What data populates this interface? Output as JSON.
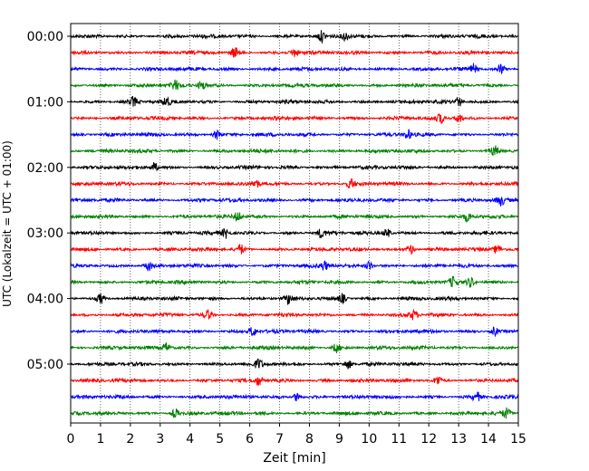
{
  "chart_data": {
    "type": "line",
    "title": "",
    "xlabel": "Zeit  [min]",
    "ylabel": "UTC (Lokalzeit = UTC + 01:00)",
    "xlim": [
      0,
      15
    ],
    "x_ticks": [
      "0",
      "1",
      "2",
      "3",
      "4",
      "5",
      "6",
      "7",
      "8",
      "9",
      "10",
      "11",
      "12",
      "13",
      "14",
      "15"
    ],
    "y_tick_labels": [
      "00:00",
      "01:00",
      "02:00",
      "03:00",
      "04:00",
      "05:00"
    ],
    "grid": "vertical dotted",
    "trace_interval_minutes": 15,
    "trace_count": 24,
    "trace_colors": [
      "#000000",
      "#ff0000",
      "#0000ff",
      "#008000"
    ],
    "trace_start_times": [
      "00:00",
      "00:15",
      "00:30",
      "00:45",
      "01:00",
      "01:15",
      "01:30",
      "01:45",
      "02:00",
      "02:15",
      "02:30",
      "02:45",
      "03:00",
      "03:15",
      "03:30",
      "03:45",
      "04:00",
      "04:15",
      "04:30",
      "04:45",
      "05:00",
      "05:15",
      "05:30",
      "05:45"
    ],
    "notable_events_min": [
      [
        8.4,
        9.2
      ],
      [
        5.5,
        7.5
      ],
      [
        13.5,
        14.4
      ],
      [
        3.5,
        4.4
      ],
      [
        2.1,
        3.2,
        13.0
      ],
      [
        12.4,
        13.0
      ],
      [
        4.9,
        11.3
      ],
      [
        14.2
      ],
      [
        2.8
      ],
      [
        6.2,
        9.4
      ],
      [
        14.4
      ],
      [
        5.6,
        13.3
      ],
      [
        5.2,
        8.4,
        10.6
      ],
      [
        5.7,
        11.4,
        14.3
      ],
      [
        2.6,
        8.5,
        10.0
      ],
      [
        13.4,
        12.8
      ],
      [
        1.0,
        7.3,
        9.1
      ],
      [
        4.6,
        11.5
      ],
      [
        6.1,
        14.2
      ],
      [
        3.2,
        8.9
      ],
      [
        6.3,
        9.3
      ],
      [
        6.3,
        12.3
      ],
      [
        7.6,
        13.6
      ],
      [
        3.5,
        14.6
      ]
    ]
  }
}
